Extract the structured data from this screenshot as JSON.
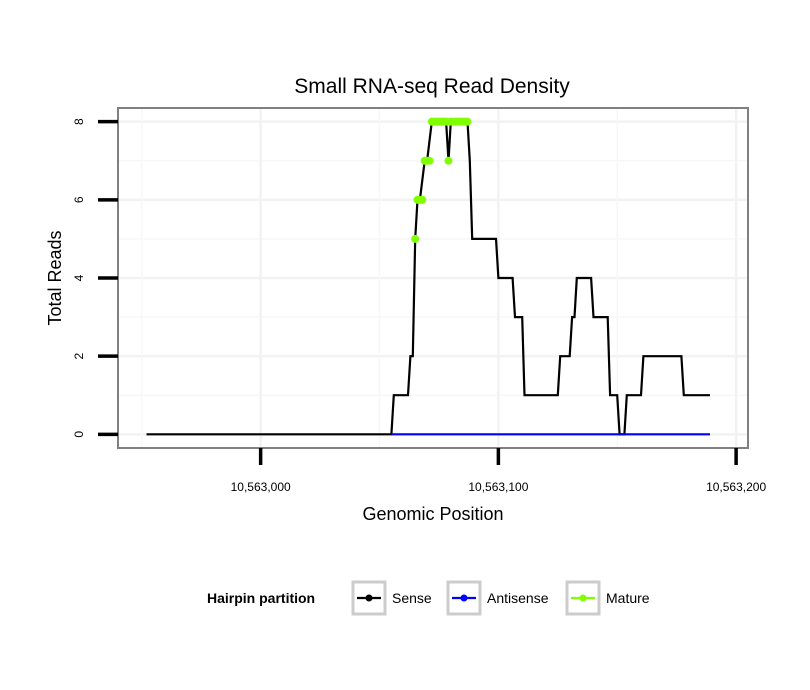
{
  "chart_data": {
    "type": "line",
    "title": "Small RNA-seq Read Density",
    "xlabel": "Genomic Position",
    "ylabel": "Total Reads",
    "xlim": [
      10562940,
      10563205
    ],
    "ylim": [
      -0.35,
      8.35
    ],
    "x_ticks": [
      10563000,
      10563100,
      10563200
    ],
    "x_tick_labels": [
      "10,563,000",
      "10,563,100",
      "10,563,200"
    ],
    "y_ticks": [
      0,
      2,
      4,
      6,
      8
    ],
    "y_tick_labels": [
      "0",
      "2",
      "4",
      "6",
      "8"
    ],
    "grid": true,
    "legend": {
      "position": "bottom",
      "title": "Hairpin partition",
      "entries": [
        {
          "name": "Sense",
          "color": "#000000"
        },
        {
          "name": "Antisense",
          "color": "#0000ff"
        },
        {
          "name": "Mature",
          "color": "#7fff00"
        }
      ]
    },
    "series": [
      {
        "name": "Sense",
        "color": "#000000",
        "style": "line",
        "x": [
          10562952,
          10563055,
          10563056,
          10563062,
          10563063,
          10563064,
          10563065,
          10563066,
          10563067,
          10563069,
          10563070,
          10563072,
          10563073,
          10563077,
          10563078,
          10563079,
          10563080,
          10563081,
          10563082,
          10563086,
          10563087,
          10563088,
          10563089,
          10563090,
          10563099,
          10563100,
          10563106,
          10563107,
          10563110,
          10563111,
          10563125,
          10563126,
          10563130,
          10563131,
          10563132,
          10563133,
          10563139,
          10563140,
          10563146,
          10563147,
          10563150,
          10563151,
          10563153,
          10563154,
          10563160,
          10563161,
          10563171,
          10563172,
          10563177,
          10563178,
          10563189
        ],
        "y": [
          0,
          0,
          1,
          1,
          2,
          2,
          5,
          6,
          6,
          7,
          7,
          8,
          8,
          8,
          8,
          7,
          8,
          8,
          8,
          8,
          8,
          7,
          5,
          5,
          5,
          4,
          4,
          3,
          3,
          1,
          1,
          2,
          2,
          3,
          3,
          4,
          4,
          3,
          3,
          1,
          1,
          0,
          0,
          1,
          1,
          2,
          2,
          2,
          2,
          1,
          1
        ]
      },
      {
        "name": "Antisense",
        "color": "#0000ff",
        "style": "line",
        "x": [
          10563055,
          10563189
        ],
        "y": [
          0,
          0
        ]
      },
      {
        "name": "Mature",
        "color": "#7fff00",
        "style": "points",
        "x": [
          10563065,
          10563066,
          10563067,
          10563068,
          10563069,
          10563070,
          10563071,
          10563072,
          10563073,
          10563074,
          10563075,
          10563076,
          10563077,
          10563078,
          10563079,
          10563080,
          10563081,
          10563082,
          10563083,
          10563084,
          10563085,
          10563086,
          10563087
        ],
        "y": [
          5,
          6,
          6,
          6,
          7,
          7,
          7,
          8,
          8,
          8,
          8,
          8,
          8,
          8,
          7,
          8,
          8,
          8,
          8,
          8,
          8,
          8,
          8
        ]
      }
    ]
  }
}
